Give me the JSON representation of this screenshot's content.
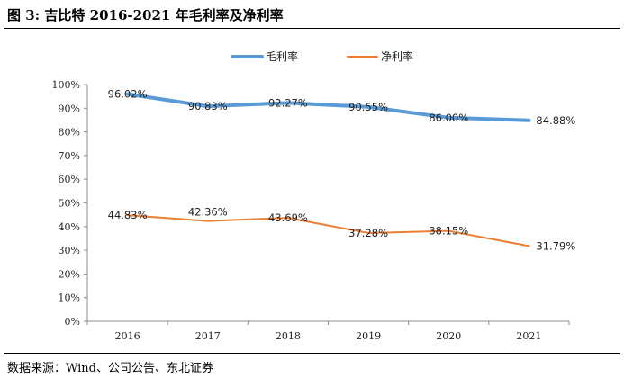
{
  "figure": {
    "title": "图 3: 吉比特 2016-2021 年毛利率及净利率",
    "source": "数据来源：Wind、公司公告、东北证券"
  },
  "colors": {
    "gross": "#5b9bd5",
    "net": "#ed7d31",
    "axis": "#8c8c8c"
  },
  "chart_data": {
    "type": "line",
    "title": "吉比特 2016-2021 年毛利率及净利率",
    "xlabel": "",
    "ylabel": "",
    "categories": [
      "2016",
      "2017",
      "2018",
      "2019",
      "2020",
      "2021"
    ],
    "ylim": [
      0,
      100
    ],
    "yticks": [
      0,
      10,
      20,
      30,
      40,
      50,
      60,
      70,
      80,
      90,
      100
    ],
    "ytick_labels": [
      "0%",
      "10%",
      "20%",
      "30%",
      "40%",
      "50%",
      "60%",
      "70%",
      "80%",
      "90%",
      "100%"
    ],
    "grid": false,
    "legend_position": "top-center",
    "series": [
      {
        "name": "毛利率",
        "values": [
          96.02,
          90.83,
          92.27,
          90.55,
          86.0,
          84.88
        ],
        "labels": [
          "96.02%",
          "90.83%",
          "92.27%",
          "90.55%",
          "86.00%",
          "84.88%"
        ]
      },
      {
        "name": "净利率",
        "values": [
          44.83,
          42.36,
          43.69,
          37.28,
          38.15,
          31.79
        ],
        "labels": [
          "44.83%",
          "42.36%",
          "43.69%",
          "37.28%",
          "38.15%",
          "31.79%"
        ]
      }
    ]
  }
}
